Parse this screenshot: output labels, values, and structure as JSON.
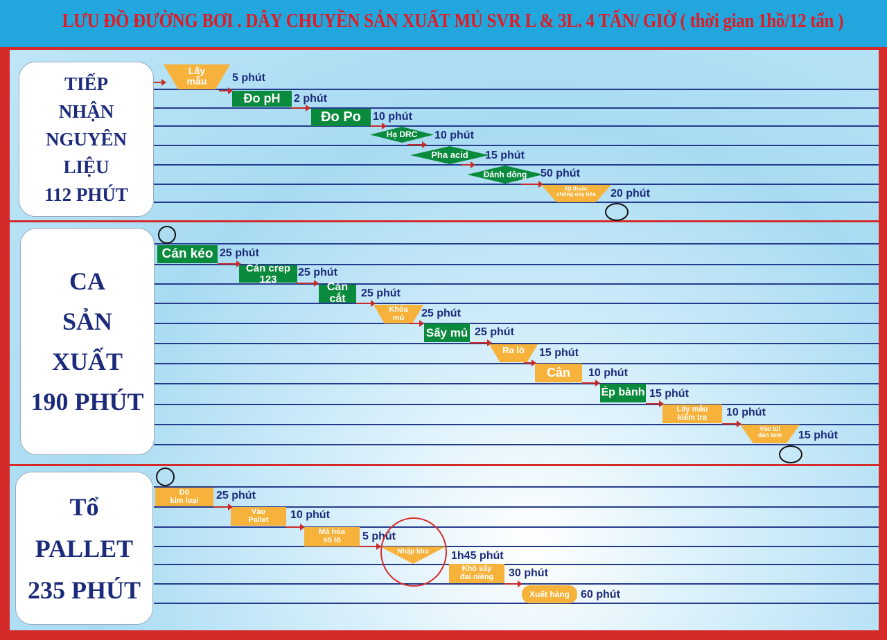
{
  "title": "LƯU ĐỒ ĐƯỜNG BƠI . DÂY CHUYỀN SẢN XUẤT MỦ SVR L & 3L. 4 TẤN/ GIỜ ( thời gian 1hồ/12 tấn )",
  "stages": [
    {
      "label": "TIẾP\nNHẬN\nNGUYÊN\nLIỆU\n112 PHÚT",
      "steps": [
        {
          "label": "Lấy\nmẫu",
          "duration": "5 phút"
        },
        {
          "label": "Đo pH",
          "duration": "2 phút"
        },
        {
          "label": "Đo Po",
          "duration": "10 phút"
        },
        {
          "label": "Hạ DRC",
          "duration": "10 phút"
        },
        {
          "label": "Pha acid",
          "duration": "15 phút"
        },
        {
          "label": "Đánh dông",
          "duration": "50 phút"
        },
        {
          "label": "Xịt thuốc\nchống oxy hóa",
          "duration": "20 phút"
        }
      ]
    },
    {
      "label": "CA\nSẢN\nXUẤT\n190 PHÚT",
      "steps": [
        {
          "label": "Cán kéo",
          "duration": "25 phút"
        },
        {
          "label": "Cán crep 123",
          "duration": "25 phút"
        },
        {
          "label": "Cán cắt",
          "duration": "25 phút"
        },
        {
          "label": "Khỏa\nmủ",
          "duration": "25 phút"
        },
        {
          "label": "Sấy mủ",
          "duration": "25 phút"
        },
        {
          "label": "Ra lò",
          "duration": "15 phút"
        },
        {
          "label": "Cân",
          "duration": "10 phút"
        },
        {
          "label": "Ép bành",
          "duration": "15 phút"
        },
        {
          "label": "Lấy mẫu\nkiểm tra",
          "duration": "10 phút"
        },
        {
          "label": "Vào túi\ndán tem",
          "duration": "15 phút"
        }
      ]
    },
    {
      "label": "Tổ\nPALLET\n235 PHÚT",
      "steps": [
        {
          "label": "Dò\nkim loại",
          "duration": "25 phút"
        },
        {
          "label": "Vào\nPallet",
          "duration": "10 phút"
        },
        {
          "label": "Mã hóa\nsố lô",
          "duration": "5 phút"
        },
        {
          "label": "Nhập kho",
          "duration": "1h45 phút"
        },
        {
          "label": "Khò sấy\nđai niềng",
          "duration": "30 phút"
        },
        {
          "label": "Xuất hàng",
          "duration": "60 phút"
        }
      ]
    }
  ]
}
